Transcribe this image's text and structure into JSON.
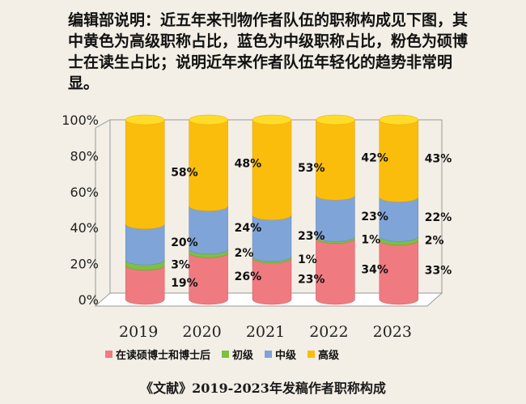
{
  "note": "编辑部说明：近五年来刊物作者队伍的职称构成见下图，其中黄色为高级职称占比，蓝色为中级职称占比，粉色为硕博士在读生占比；说明近年来作者队伍年轻化的趋势非常明显。",
  "caption": "《文献》2019-2023年发稿作者职称构成",
  "chart_data": {
    "type": "bar",
    "stacked": true,
    "percent": true,
    "categories": [
      "2019",
      "2020",
      "2021",
      "2022",
      "2023"
    ],
    "series": [
      {
        "name": "在读硕博士和博士后",
        "values": [
          19,
          26,
          23,
          34,
          33
        ],
        "labels": [
          "19%",
          "26%",
          "23%",
          "34%",
          "33%"
        ],
        "color": "#ef7a80"
      },
      {
        "name": "初级",
        "values": [
          3,
          2,
          1,
          1,
          2
        ],
        "labels": [
          "3%",
          "2%",
          "1%",
          "1%",
          "2%"
        ],
        "color": "#7cc142"
      },
      {
        "name": "中级",
        "values": [
          20,
          24,
          23,
          23,
          22
        ],
        "labels": [
          "20%",
          "24%",
          "23%",
          "23%",
          "22%"
        ],
        "color": "#7fa4d8"
      },
      {
        "name": "高级",
        "values": [
          58,
          48,
          53,
          42,
          43
        ],
        "labels": [
          "58%",
          "48%",
          "53%",
          "42%",
          "43%"
        ],
        "color": "#fbbd0c"
      }
    ],
    "yticks": [
      "0%",
      "20%",
      "40%",
      "60%",
      "80%",
      "100%"
    ],
    "ylim": [
      0,
      100
    ],
    "legend_position": "bottom"
  }
}
